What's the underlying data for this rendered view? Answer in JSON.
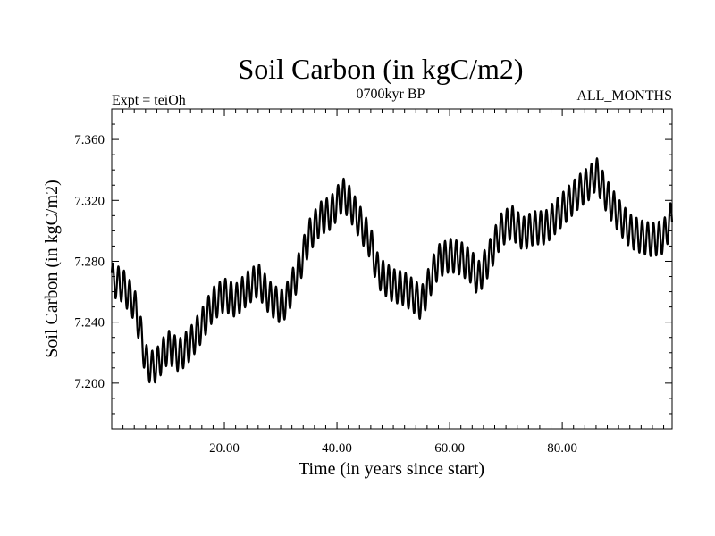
{
  "chart_data": {
    "type": "line",
    "title": "Soil Carbon (in kgC/m2)",
    "subtitle": "0700kyr BP",
    "left_label": "Expt = teiOh",
    "right_label": "ALL_MONTHS",
    "xlabel": "Time (in years since start)",
    "ylabel": "Soil Carbon (in kgC/m2)",
    "xlim": [
      0,
      99.5
    ],
    "ylim": [
      7.17,
      7.38
    ],
    "x_ticks": [
      20,
      40,
      60,
      80
    ],
    "x_tick_labels": [
      "20.00",
      "40.00",
      "60.00",
      "80.00"
    ],
    "y_ticks": [
      7.2,
      7.24,
      7.28,
      7.32,
      7.36
    ],
    "y_tick_labels": [
      "7.200",
      "7.240",
      "7.280",
      "7.320",
      "7.360"
    ],
    "seasonal_amplitude": 0.011,
    "series": [
      {
        "name": "Soil Carbon",
        "color": "#000000",
        "x": [
          0,
          2,
          4,
          5,
          6,
          7,
          8,
          10,
          12,
          14,
          16,
          18,
          20,
          22,
          24,
          26,
          28,
          30,
          31,
          33,
          35,
          37,
          39,
          41,
          42,
          44,
          46,
          47,
          48,
          50,
          52,
          54,
          55,
          57,
          58,
          60,
          62,
          64,
          65,
          67,
          69,
          71,
          73,
          75,
          77,
          79,
          81,
          83,
          85,
          86,
          88,
          90,
          92,
          94,
          96,
          98,
          99.5
        ],
        "y": [
          7.268,
          7.264,
          7.252,
          7.236,
          7.215,
          7.21,
          7.212,
          7.224,
          7.218,
          7.226,
          7.238,
          7.252,
          7.258,
          7.254,
          7.262,
          7.268,
          7.256,
          7.25,
          7.254,
          7.272,
          7.296,
          7.308,
          7.312,
          7.324,
          7.32,
          7.306,
          7.292,
          7.276,
          7.27,
          7.264,
          7.262,
          7.256,
          7.252,
          7.272,
          7.28,
          7.284,
          7.282,
          7.276,
          7.268,
          7.282,
          7.3,
          7.306,
          7.298,
          7.302,
          7.302,
          7.31,
          7.318,
          7.326,
          7.332,
          7.338,
          7.322,
          7.31,
          7.3,
          7.296,
          7.294,
          7.296,
          7.31
        ]
      }
    ]
  }
}
